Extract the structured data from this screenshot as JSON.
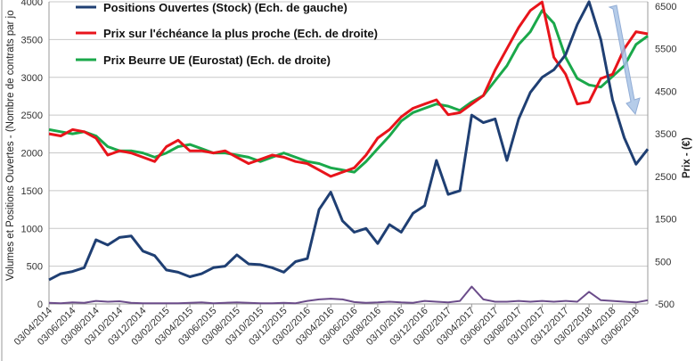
{
  "chart_data": {
    "type": "line",
    "title": "",
    "ylabel_left": "Volumes et Positions Ouvertes - (Nombre de contrats par jo",
    "ylabel_right": "Prix - (€)",
    "ylim_left": [
      0,
      4000
    ],
    "yticks_left": [
      0,
      500,
      1000,
      1500,
      2000,
      2500,
      3000,
      3500,
      4000
    ],
    "ylim_right": [
      -500,
      6500
    ],
    "yticks_right": [
      -500,
      500,
      1500,
      2500,
      3500,
      4500,
      5500,
      6500
    ],
    "grid": true,
    "legend_position": "top-left",
    "x_tick_labels": [
      "03/04/2014",
      "03/06/2014",
      "03/08/2014",
      "03/10/2014",
      "03/12/2014",
      "03/02/2015",
      "03/04/2015",
      "03/06/2015",
      "03/08/2015",
      "03/10/2015",
      "03/12/2015",
      "03/02/2016",
      "03/04/2016",
      "03/06/2016",
      "03/08/2016",
      "03/10/2016",
      "03/12/2016",
      "03/02/2017",
      "03/04/2017",
      "03/06/2017",
      "03/08/2017",
      "03/10/2017",
      "03/12/2017",
      "03/02/2018",
      "03/04/2018",
      "03/06/2018"
    ],
    "x_months": [
      "2014-04",
      "2014-05",
      "2014-06",
      "2014-07",
      "2014-08",
      "2014-09",
      "2014-10",
      "2014-11",
      "2014-12",
      "2015-01",
      "2015-02",
      "2015-03",
      "2015-04",
      "2015-05",
      "2015-06",
      "2015-07",
      "2015-08",
      "2015-09",
      "2015-10",
      "2015-11",
      "2015-12",
      "2016-01",
      "2016-02",
      "2016-03",
      "2016-04",
      "2016-05",
      "2016-06",
      "2016-07",
      "2016-08",
      "2016-09",
      "2016-10",
      "2016-11",
      "2016-12",
      "2017-01",
      "2017-02",
      "2017-03",
      "2017-04",
      "2017-05",
      "2017-06",
      "2017-07",
      "2017-08",
      "2017-09",
      "2017-10",
      "2017-11",
      "2017-12",
      "2018-01",
      "2018-02",
      "2018-03",
      "2018-04",
      "2018-05",
      "2018-06",
      "2018-07"
    ],
    "series": [
      {
        "name": "Positions Ouvertes (Stock) (Ech. de gauche)",
        "axis": "left",
        "color": "#1f3f73",
        "values": [
          320,
          400,
          430,
          480,
          850,
          780,
          880,
          900,
          700,
          640,
          450,
          420,
          360,
          400,
          480,
          500,
          650,
          530,
          520,
          480,
          420,
          560,
          600,
          1250,
          1480,
          1100,
          950,
          1000,
          800,
          1050,
          950,
          1200,
          1300,
          1900,
          1450,
          1500,
          2500,
          2400,
          2450,
          1900,
          2450,
          2800,
          3000,
          3100,
          3300,
          3700,
          4000,
          3500,
          2700,
          2200,
          1850,
          2050
        ]
      },
      {
        "name": "Prix sur l'échéance la plus proche (Ech. de droite)",
        "axis": "right",
        "color": "#e8141b",
        "values": [
          3500,
          3450,
          3600,
          3550,
          3400,
          3000,
          3100,
          3050,
          2950,
          2850,
          3200,
          3350,
          3100,
          3100,
          3050,
          3100,
          2950,
          2800,
          2900,
          3000,
          2950,
          2850,
          2800,
          2650,
          2500,
          2600,
          2700,
          3000,
          3400,
          3600,
          3900,
          4100,
          4200,
          4300,
          3950,
          4000,
          4200,
          4400,
          5000,
          5500,
          6000,
          6400,
          6600,
          5300,
          4900,
          4200,
          4250,
          4800,
          4900,
          5500,
          5900,
          5850
        ]
      },
      {
        "name": "Prix Beurre UE (Eurostat) (Ech. de droite)",
        "axis": "right",
        "color": "#1aa84a",
        "values": [
          3600,
          3550,
          3500,
          3550,
          3450,
          3200,
          3100,
          3100,
          3050,
          2950,
          3050,
          3200,
          3250,
          3150,
          3050,
          3050,
          3000,
          2950,
          2850,
          2950,
          3050,
          2950,
          2850,
          2800,
          2700,
          2650,
          2600,
          2850,
          3150,
          3450,
          3800,
          4000,
          4100,
          4200,
          4150,
          4050,
          4250,
          4400,
          4750,
          5100,
          5600,
          5900,
          6400,
          6100,
          5300,
          4800,
          4650,
          4600,
          4850,
          5100,
          5600,
          5800
        ]
      },
      {
        "name": "",
        "axis": "left",
        "color": "#6b4c8a",
        "values": [
          15,
          10,
          20,
          15,
          40,
          30,
          35,
          15,
          10,
          10,
          10,
          10,
          15,
          20,
          10,
          15,
          20,
          15,
          10,
          10,
          15,
          10,
          40,
          60,
          70,
          60,
          25,
          15,
          20,
          30,
          20,
          15,
          40,
          30,
          20,
          40,
          230,
          60,
          30,
          30,
          40,
          30,
          40,
          30,
          40,
          30,
          160,
          50,
          40,
          30,
          20,
          50
        ]
      }
    ],
    "annotation": "arrow-down-trend",
    "arrow_color": "#a9c4e6"
  }
}
